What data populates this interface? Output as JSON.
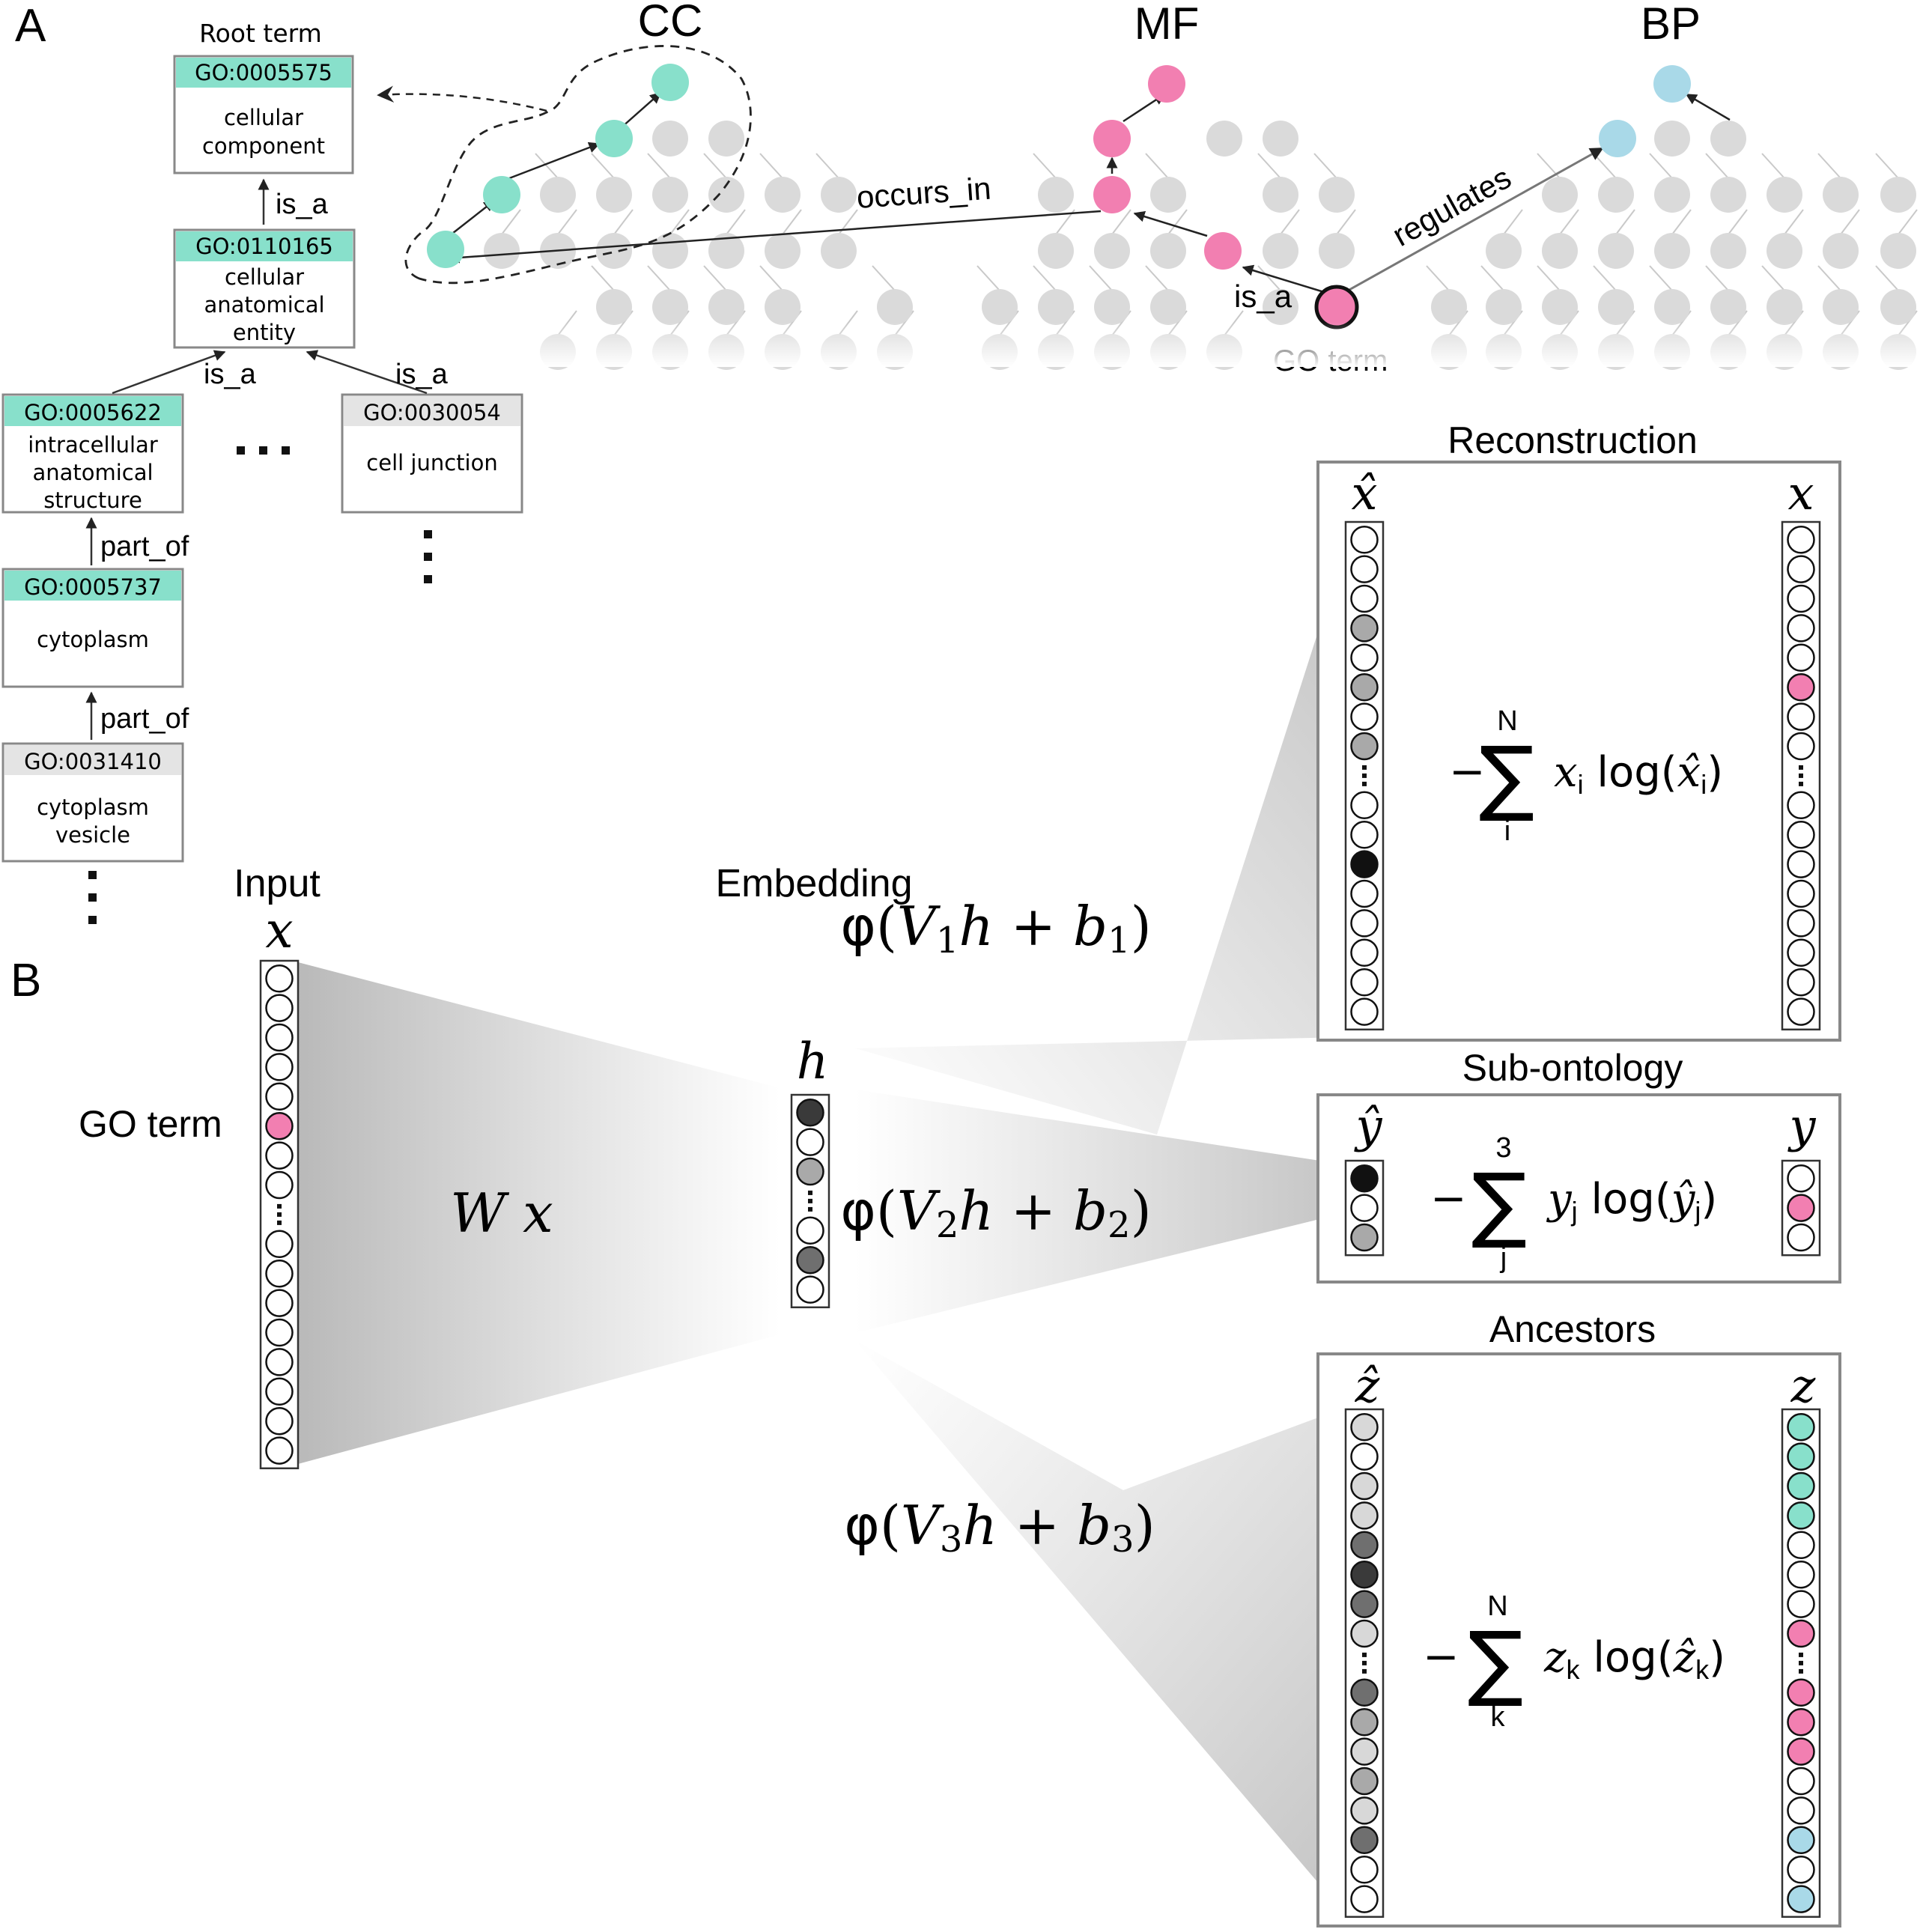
{
  "panel_labels": {
    "a": "A",
    "b": "B"
  },
  "panel_a": {
    "hierarchy": {
      "root_label": "Root term",
      "boxes": {
        "root": {
          "id": "GO:0005575",
          "name_l1": "cellular",
          "name_l2": "component"
        },
        "cae": {
          "id": "GO:0110165",
          "name_l1": "cellular",
          "name_l2": "anatomical",
          "name_l3": "entity"
        },
        "ias": {
          "id": "GO:0005622",
          "name_l1": "intracellular",
          "name_l2": "anatomical",
          "name_l3": "structure"
        },
        "junction": {
          "id": "GO:0030054",
          "name_l1": "cell junction"
        },
        "cytoplasm": {
          "id": "GO:0005737",
          "name_l1": "cytoplasm"
        },
        "vesicle": {
          "id": "GO:0031410",
          "name_l1": "cytoplasm",
          "name_l2": "vesicle"
        }
      },
      "edges": {
        "is_a_1": "is_a",
        "is_a_2": "is_a",
        "is_a_3": "is_a",
        "part_of_1": "part_of",
        "part_of_2": "part_of"
      },
      "ellipsis": "···"
    },
    "ontologies": {
      "cc": "CC",
      "mf": "MF",
      "bp": "BP"
    },
    "relations": {
      "occurs_in": "occurs_in",
      "regulates": "regulates",
      "is_a": "is_a"
    },
    "go_term": "GO term"
  },
  "panel_b": {
    "input_label": "Input",
    "input_var": "x",
    "go_term": "GO term",
    "embedding_label": "Embedding",
    "embedding_var": "h",
    "transform": "W x",
    "heads": {
      "f1": {
        "phi": "φ",
        "V": "V",
        "sub": "1",
        "h": "h",
        "b": "b"
      },
      "f2": {
        "phi": "φ",
        "V": "V",
        "sub": "2",
        "h": "h",
        "b": "b"
      },
      "f3": {
        "phi": "φ",
        "V": "V",
        "sub": "3",
        "h": "h",
        "b": "b"
      }
    },
    "boxes": {
      "reconstruction": {
        "title": "Reconstruction",
        "pred": "x̂",
        "target": "x",
        "sum_top": "N",
        "sum_bot": "i",
        "term_var": "x",
        "term_sub": "i",
        "log": "log",
        "hat": "x̂"
      },
      "subontology": {
        "title": "Sub-ontology",
        "pred": "ŷ",
        "target": "y",
        "sum_top": "3",
        "sum_bot": "j",
        "term_var": "y",
        "term_sub": "j",
        "log": "log",
        "hat": "ŷ"
      },
      "ancestors": {
        "title": "Ancestors",
        "pred": "ẑ",
        "target": "z",
        "sum_top": "N",
        "sum_bot": "k",
        "term_var": "z",
        "term_sub": "k",
        "log": "log",
        "hat": "ẑ"
      }
    }
  },
  "colors": {
    "cc": "#88e0cb",
    "mf": "#f27fb1",
    "bp": "#a9d9e8",
    "grey_node": "#dadada",
    "box_header_cc": "#88e0cb",
    "box_header_grey": "#e4e4e4",
    "box_border": "#888888"
  },
  "circle_fills": {
    "x_input": [
      "w",
      "w",
      "w",
      "w",
      "w",
      "m",
      "w",
      "w",
      "dots",
      "w",
      "w",
      "w",
      "w",
      "w",
      "w",
      "w",
      "w"
    ],
    "h": [
      "k3",
      "w",
      "g2",
      "dots",
      "w",
      "g3",
      "w"
    ],
    "x_hat": [
      "w",
      "w",
      "w",
      "g2",
      "w",
      "g2",
      "w",
      "g2",
      "dots",
      "w",
      "w",
      "k1",
      "w",
      "w",
      "w",
      "w",
      "w"
    ],
    "x_target": [
      "w",
      "w",
      "w",
      "w",
      "w",
      "m",
      "w",
      "w",
      "dots",
      "w",
      "w",
      "w",
      "w",
      "w",
      "w",
      "w",
      "w"
    ],
    "y_hat": [
      "k1",
      "w",
      "g2"
    ],
    "y_target": [
      "w",
      "m",
      "w"
    ],
    "z_hat": [
      "g1",
      "w",
      "g1",
      "g1",
      "g3",
      "k3",
      "g3",
      "g1",
      "dots",
      "g3",
      "g2",
      "g1",
      "g2",
      "g1",
      "g3",
      "w",
      "w"
    ],
    "z_target": [
      "c",
      "c",
      "c",
      "c",
      "w",
      "w",
      "w",
      "m",
      "dots",
      "m",
      "m",
      "m",
      "w",
      "w",
      "b",
      "w",
      "b"
    ]
  }
}
